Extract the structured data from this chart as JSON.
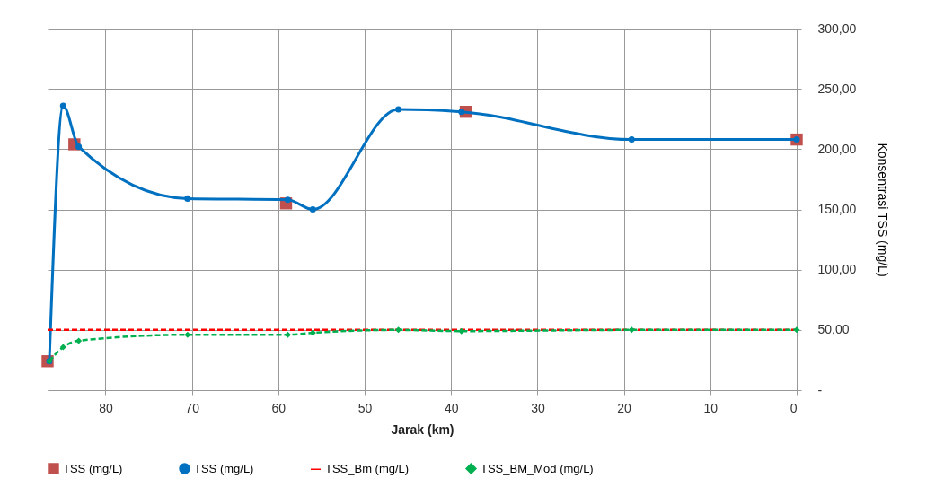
{
  "chart_data": {
    "type": "line",
    "xlabel": "Jarak (km)",
    "ylabel": "Konsentrasi TSS (mg/L)",
    "xlim": [
      86.7,
      0
    ],
    "xticks": [
      80,
      70,
      60,
      50,
      40,
      30,
      20,
      10,
      0
    ],
    "ylim": [
      0,
      300
    ],
    "yticks": [
      {
        "value": 0,
        "label": "-"
      },
      {
        "value": 50,
        "label": "50,00"
      },
      {
        "value": 100,
        "label": "100,00"
      },
      {
        "value": 150,
        "label": "150,00"
      },
      {
        "value": 200,
        "label": "200,00"
      },
      {
        "value": 250,
        "label": "250,00"
      },
      {
        "value": 300,
        "label": "300,00"
      }
    ],
    "grid": true,
    "legend": "bottom",
    "series": [
      {
        "name": "TSS (mg/L)",
        "type": "scatter",
        "marker": "square",
        "color": "#c0504d",
        "x": [
          86.7,
          83.6,
          59.1,
          38.3,
          0
        ],
        "values": [
          24,
          204,
          155,
          231,
          208
        ]
      },
      {
        "name": "TSS (mg/L)",
        "marker": "circle",
        "line_style": "solid",
        "color": "#0070c0",
        "x": [
          86.5,
          84.9,
          83.1,
          70.5,
          58.9,
          56.0,
          46.1,
          38.8,
          19.1,
          0
        ],
        "values": [
          24,
          236,
          202,
          159,
          158,
          150,
          233,
          231,
          208,
          208
        ]
      },
      {
        "name": "TSS_Bm (mg/L)",
        "marker": "none",
        "line_style": "dashed",
        "color": "#ff0000",
        "x": [
          86.7,
          0
        ],
        "values": [
          50,
          50
        ]
      },
      {
        "name": "TSS_BM_Mod (mg/L)",
        "marker": "diamond",
        "line_style": "dashed",
        "color": "#00b050",
        "x": [
          86.5,
          84.9,
          83.1,
          70.5,
          58.9,
          56.0,
          46.1,
          38.8,
          19.1,
          0
        ],
        "values": [
          24,
          35.7,
          41,
          46,
          46,
          47.6,
          50,
          49,
          50,
          50
        ]
      }
    ]
  }
}
